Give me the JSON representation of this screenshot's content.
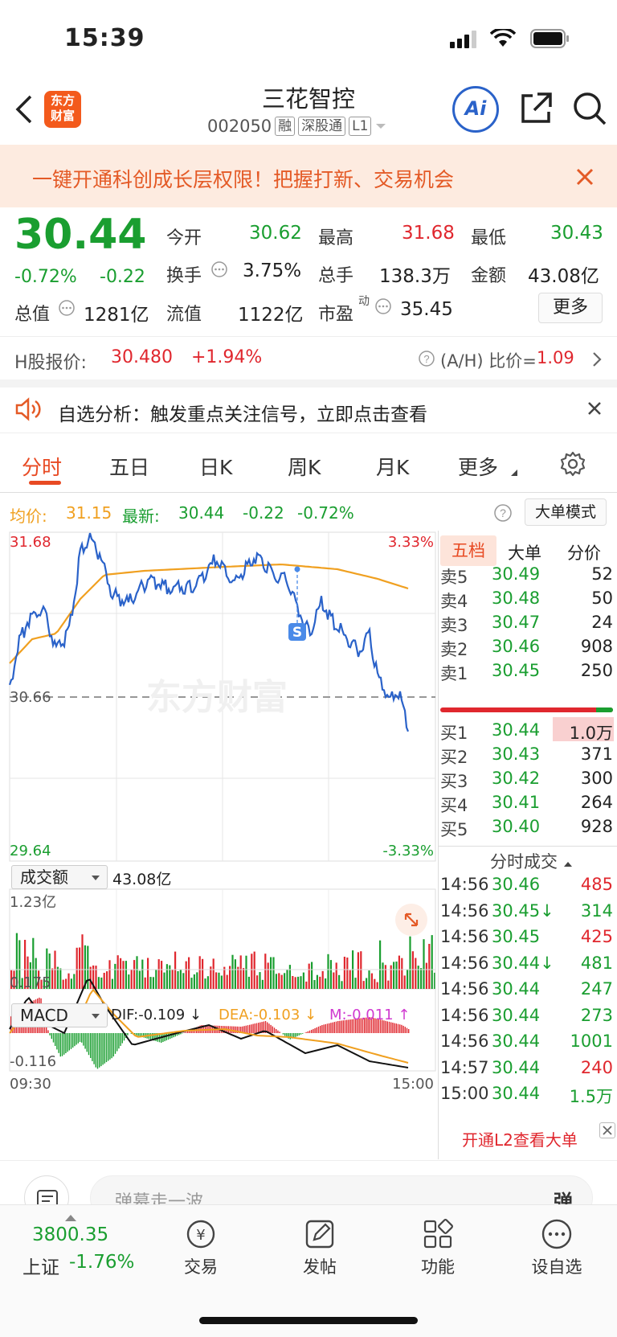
{
  "status": {
    "time": "15:39"
  },
  "header": {
    "title": "三花智控",
    "code": "002050",
    "tags": [
      "融",
      "深股通",
      "L1"
    ],
    "logo_text": [
      "东方",
      "财富"
    ],
    "ai_label": "Ai"
  },
  "banner": {
    "text": "一键开通科创成长层权限！把握打新、交易机会"
  },
  "quote": {
    "price": "30.44",
    "change_pct": "-0.72%",
    "change": "-0.22",
    "open_label": "今开",
    "open": "30.62",
    "high_label": "最高",
    "high": "31.68",
    "low_label": "最低",
    "low": "30.43",
    "turnover_label": "换手",
    "turnover": "3.75%",
    "volume_label": "总手",
    "volume": "138.3万",
    "amount_label": "金额",
    "amount": "43.08亿",
    "mcap_label": "总值",
    "mcap": "1281亿",
    "float_label": "流值",
    "float": "1122亿",
    "pe_label": "市盈",
    "pe_sup": "动",
    "pe": "35.45",
    "more": "更多"
  },
  "hshare": {
    "label": "H股报价:",
    "price": "30.480",
    "pct": "+1.94%",
    "ratio_label": "(A/H) 比价=",
    "ratio": "1.09"
  },
  "notice": {
    "text": "自选分析：触发重点关注信号，立即点击查看"
  },
  "tabs": [
    "分时",
    "五日",
    "日K",
    "周K",
    "月K",
    "更多"
  ],
  "infobar": {
    "avg_label": "均价:",
    "avg": "31.15",
    "latest_label": "最新:",
    "latest": "30.44",
    "chg": "-0.22",
    "pct": "-0.72%",
    "big_mode": "大单模式"
  },
  "chart": {
    "ytop": "31.68",
    "ybottom": "29.64",
    "ymid": "30.66",
    "pct_top": "3.33%",
    "pct_bottom": "-3.33%",
    "xstart": "09:30",
    "xend": "15:00",
    "watermark": "东方财富",
    "marker": "S"
  },
  "volume_panel": {
    "selector": "成交额",
    "total": "43.08亿",
    "max": "1.23亿"
  },
  "macd_panel": {
    "selector": "MACD",
    "dif": "DIF:-0.109 ↓",
    "dea": "DEA:-0.103 ↓",
    "m": "M:-0.011 ↑",
    "top": "0.175",
    "bottom": "-0.116"
  },
  "orderbook": {
    "tabs": [
      "五档",
      "大单",
      "分价"
    ],
    "asks": [
      {
        "l": "卖5",
        "p": "30.49",
        "v": "52"
      },
      {
        "l": "卖4",
        "p": "30.48",
        "v": "50"
      },
      {
        "l": "卖3",
        "p": "30.47",
        "v": "24"
      },
      {
        "l": "卖2",
        "p": "30.46",
        "v": "908"
      },
      {
        "l": "卖1",
        "p": "30.45",
        "v": "250"
      }
    ],
    "bids": [
      {
        "l": "买1",
        "p": "30.44",
        "v": "1.0万"
      },
      {
        "l": "买2",
        "p": "30.43",
        "v": "371"
      },
      {
        "l": "买3",
        "p": "30.42",
        "v": "300"
      },
      {
        "l": "买4",
        "p": "30.41",
        "v": "264"
      },
      {
        "l": "买5",
        "p": "30.40",
        "v": "928"
      }
    ]
  },
  "ticks_header": "分时成交",
  "ticks": [
    {
      "t": "14:56",
      "p": "30.46",
      "v": "485",
      "c": "red"
    },
    {
      "t": "14:56",
      "p": "30.45↓",
      "v": "314",
      "c": "green"
    },
    {
      "t": "14:56",
      "p": "30.45",
      "v": "425",
      "c": "red"
    },
    {
      "t": "14:56",
      "p": "30.44↓",
      "v": "481",
      "c": "green"
    },
    {
      "t": "14:56",
      "p": "30.44",
      "v": "247",
      "c": "green"
    },
    {
      "t": "14:56",
      "p": "30.44",
      "v": "273",
      "c": "green"
    },
    {
      "t": "14:56",
      "p": "30.44",
      "v": "1001",
      "c": "green"
    },
    {
      "t": "14:57",
      "p": "30.44",
      "v": "240",
      "c": "red"
    },
    {
      "t": "15:00",
      "p": "30.44",
      "v": "1.5万",
      "c": "green"
    }
  ],
  "l2": "开通L2查看大单",
  "danmu": {
    "placeholder": "弹幕走一波...",
    "btn": "弹"
  },
  "footer": {
    "index_value": "3800.35",
    "index_name": "上证",
    "index_pct": "-1.76%",
    "items": [
      "交易",
      "发帖",
      "功能",
      "设自选"
    ]
  },
  "colors": {
    "up": "#e0272e",
    "down": "#1a9e30",
    "avg": "#f0a020",
    "price": "#2a62c9",
    "accent": "#e84a23"
  }
}
